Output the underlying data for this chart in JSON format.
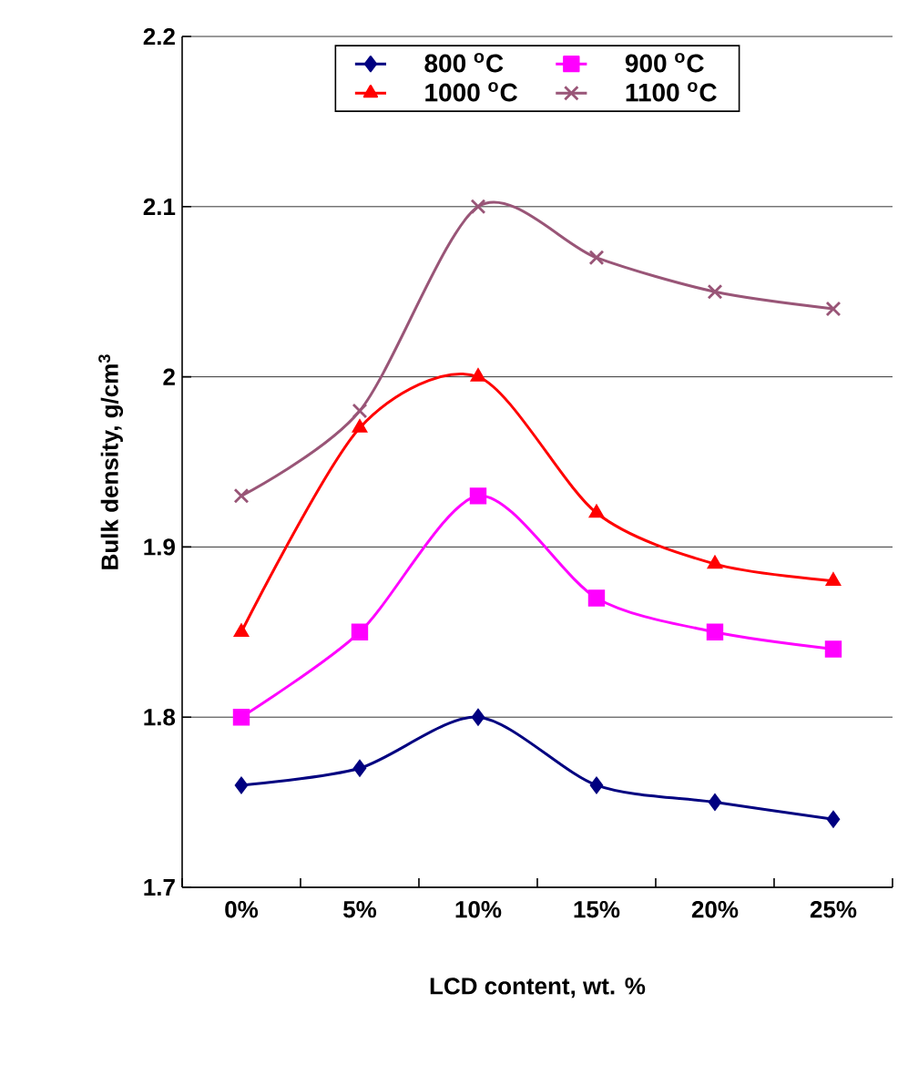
{
  "chart_data": {
    "type": "line",
    "xlabel": "LCD content, wt. %",
    "ylabel": "Bulk density, g/cm$^{3}$",
    "categories": [
      "0%",
      "5%",
      "10%",
      "15%",
      "20%",
      "25%"
    ],
    "series": [
      {
        "name": "800 $^{o}$C",
        "color": "#000080",
        "marker": "diamond",
        "values": [
          1.76,
          1.77,
          1.8,
          1.76,
          1.75,
          1.74
        ]
      },
      {
        "name": "900 $^{o}$C",
        "color": "#ff00ff",
        "marker": "square",
        "values": [
          1.8,
          1.85,
          1.93,
          1.87,
          1.85,
          1.84
        ]
      },
      {
        "name": "1000 $^{o}$C",
        "color": "#ff0000",
        "marker": "triangle",
        "values": [
          1.85,
          1.97,
          2.0,
          1.92,
          1.89,
          1.88
        ]
      },
      {
        "name": "1100 $^{o}$C",
        "color": "#995577",
        "marker": "cross",
        "values": [
          1.93,
          1.98,
          2.1,
          2.07,
          2.05,
          2.04
        ]
      }
    ],
    "ylim": [
      1.7,
      2.2
    ],
    "yticks": [
      1.7,
      1.8,
      1.9,
      2,
      2.1,
      2.2
    ],
    "grid": "y",
    "legend": "top"
  }
}
